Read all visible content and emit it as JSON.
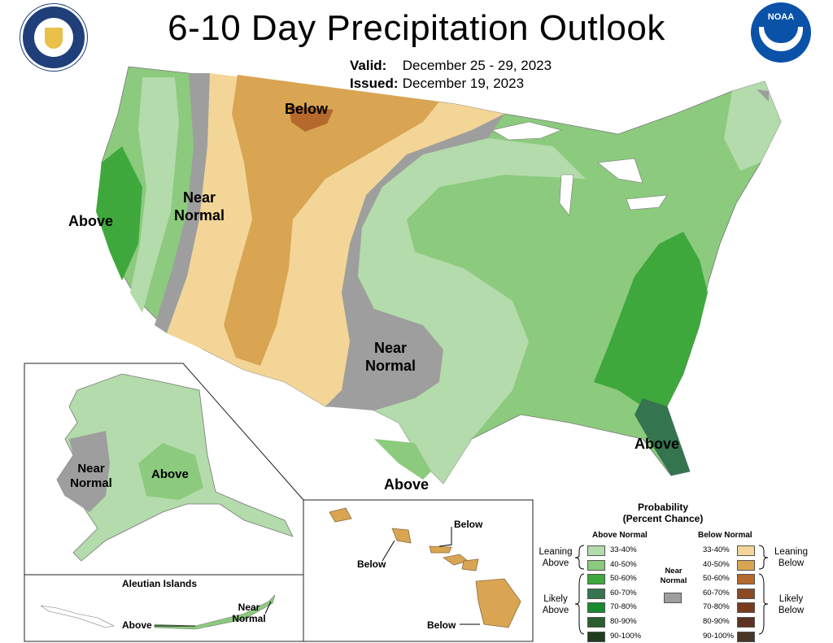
{
  "header": {
    "title": "6-10 Day Precipitation Outlook",
    "valid_label": "Valid:",
    "valid_value": "December 25 - 29, 2023",
    "issued_label": "Issued:",
    "issued_value": "December 19, 2023",
    "noaa_logo_text": "NOAA"
  },
  "map_labels": {
    "below_north": "Below",
    "near_normal_west_1": "Near",
    "near_normal_west_2": "Normal",
    "above_west": "Above",
    "near_normal_south_1": "Near",
    "near_normal_south_2": "Normal",
    "above_southeast": "Above",
    "above_texas": "Above"
  },
  "alaska": {
    "near_1": "Near",
    "near_2": "Normal",
    "above": "Above"
  },
  "aleutian": {
    "title": "Aleutian Islands",
    "above": "Above",
    "near_1": "Near",
    "near_2": "Normal"
  },
  "hawaii": {
    "below_1": "Below",
    "below_2": "Below",
    "below_3": "Below"
  },
  "legend": {
    "title_1": "Probability",
    "title_2": "(Percent Chance)",
    "above_header": "Above Normal",
    "below_header": "Below Normal",
    "near_1": "Near",
    "near_2": "Normal",
    "leaning_above_1": "Leaning",
    "leaning_above_2": "Above",
    "likely_above_1": "Likely",
    "likely_above_2": "Above",
    "leaning_below_1": "Leaning",
    "leaning_below_2": "Below",
    "likely_below_1": "Likely",
    "likely_below_2": "Below",
    "ranges": [
      "33-40%",
      "40-50%",
      "50-60%",
      "60-70%",
      "70-80%",
      "80-90%",
      "90-100%"
    ],
    "above_colors": [
      "#b3dbab",
      "#8cca7e",
      "#3fa83c",
      "#34754f",
      "#178a2e",
      "#2c5e2d",
      "#1e3d1e"
    ],
    "below_colors": [
      "#f3d597",
      "#d9a552",
      "#b5692c",
      "#8c4a24",
      "#7a3a1e",
      "#5e3220",
      "#4a3626"
    ],
    "near_color": "#9e9e9e"
  }
}
